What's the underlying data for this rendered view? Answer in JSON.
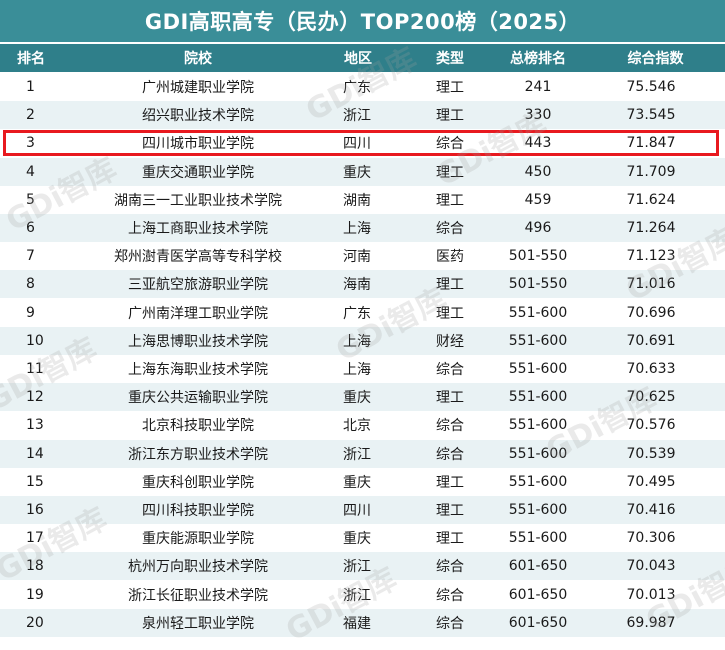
{
  "title": "GDI高职高专（民办）TOP200榜（2025）",
  "headers": {
    "rank": "排名",
    "school": "院校",
    "region": "地区",
    "type": "类型",
    "total_rank": "总榜排名",
    "score": "综合指数"
  },
  "watermark_text": "GDi智库",
  "highlight_row": 3,
  "rows": [
    {
      "rank": "1",
      "school": "广州城建职业学院",
      "region": "广东",
      "type": "理工",
      "total_rank": "241",
      "score": "75.546"
    },
    {
      "rank": "2",
      "school": "绍兴职业技术学院",
      "region": "浙江",
      "type": "理工",
      "total_rank": "330",
      "score": "73.545"
    },
    {
      "rank": "3",
      "school": "四川城市职业学院",
      "region": "四川",
      "type": "综合",
      "total_rank": "443",
      "score": "71.847"
    },
    {
      "rank": "4",
      "school": "重庆交通职业学院",
      "region": "重庆",
      "type": "理工",
      "total_rank": "450",
      "score": "71.709"
    },
    {
      "rank": "5",
      "school": "湖南三一工业职业技术学院",
      "region": "湖南",
      "type": "理工",
      "total_rank": "459",
      "score": "71.624"
    },
    {
      "rank": "6",
      "school": "上海工商职业技术学院",
      "region": "上海",
      "type": "综合",
      "total_rank": "496",
      "score": "71.264"
    },
    {
      "rank": "7",
      "school": "郑州澍青医学高等专科学校",
      "region": "河南",
      "type": "医药",
      "total_rank": "501-550",
      "score": "71.123"
    },
    {
      "rank": "8",
      "school": "三亚航空旅游职业学院",
      "region": "海南",
      "type": "理工",
      "total_rank": "501-550",
      "score": "71.016"
    },
    {
      "rank": "9",
      "school": "广州南洋理工职业学院",
      "region": "广东",
      "type": "理工",
      "total_rank": "551-600",
      "score": "70.696"
    },
    {
      "rank": "10",
      "school": "上海思博职业技术学院",
      "region": "上海",
      "type": "财经",
      "total_rank": "551-600",
      "score": "70.691"
    },
    {
      "rank": "11",
      "school": "上海东海职业技术学院",
      "region": "上海",
      "type": "综合",
      "total_rank": "551-600",
      "score": "70.633"
    },
    {
      "rank": "12",
      "school": "重庆公共运输职业学院",
      "region": "重庆",
      "type": "理工",
      "total_rank": "551-600",
      "score": "70.625"
    },
    {
      "rank": "13",
      "school": "北京科技职业学院",
      "region": "北京",
      "type": "综合",
      "total_rank": "551-600",
      "score": "70.576"
    },
    {
      "rank": "14",
      "school": "浙江东方职业技术学院",
      "region": "浙江",
      "type": "综合",
      "total_rank": "551-600",
      "score": "70.539"
    },
    {
      "rank": "15",
      "school": "重庆科创职业学院",
      "region": "重庆",
      "type": "理工",
      "total_rank": "551-600",
      "score": "70.495"
    },
    {
      "rank": "16",
      "school": "四川科技职业学院",
      "region": "四川",
      "type": "理工",
      "total_rank": "551-600",
      "score": "70.416"
    },
    {
      "rank": "17",
      "school": "重庆能源职业学院",
      "region": "重庆",
      "type": "理工",
      "total_rank": "551-600",
      "score": "70.306"
    },
    {
      "rank": "18",
      "school": "杭州万向职业技术学院",
      "region": "浙江",
      "type": "综合",
      "total_rank": "601-650",
      "score": "70.043"
    },
    {
      "rank": "19",
      "school": "浙江长征职业技术学院",
      "region": "浙江",
      "type": "综合",
      "total_rank": "601-650",
      "score": "70.013"
    },
    {
      "rank": "20",
      "school": "泉州轻工职业学院",
      "region": "福建",
      "type": "综合",
      "total_rank": "601-650",
      "score": "69.987"
    }
  ]
}
